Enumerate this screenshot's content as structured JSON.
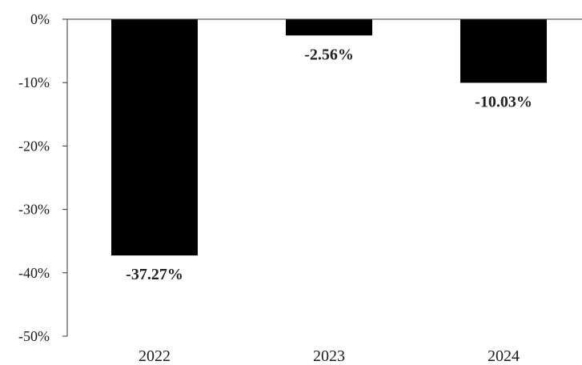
{
  "chart_data": {
    "type": "bar",
    "categories": [
      "2022",
      "2023",
      "2024"
    ],
    "values": [
      -37.27,
      -2.56,
      -10.03
    ],
    "data_labels": [
      "-37.27%",
      "-2.56%",
      "-10.03%"
    ],
    "y_ticks": [
      0,
      -10,
      -20,
      -30,
      -40,
      -50
    ],
    "y_tick_labels": [
      "0%",
      "-10%",
      "-20%",
      "-30%",
      "-40%",
      "-50%"
    ],
    "ylim": [
      -50,
      0
    ],
    "title": "",
    "xlabel": "",
    "ylabel": "",
    "grid": false,
    "bar_color": "#000000"
  }
}
